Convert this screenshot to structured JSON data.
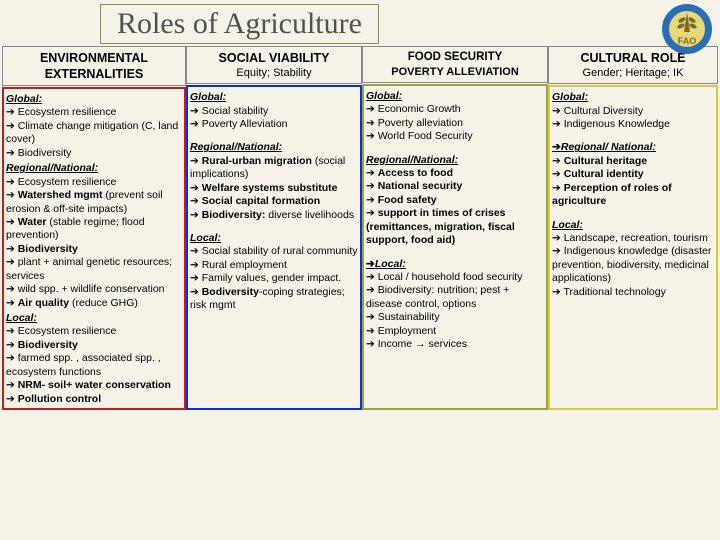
{
  "title": "Roles of Agriculture",
  "logo": {
    "name": "fao-logo",
    "ring_color": "#2a6fb5",
    "inner_color": "#e8d878",
    "text": "FAO"
  },
  "columns": [
    {
      "header": "ENVIRONMENTAL EXTERNALITIES",
      "subheader": "",
      "border_color": "#c21d1d",
      "header_fontsize": 12.5,
      "sections": [
        {
          "label": "Global:",
          "items": [
            {
              "text": "Ecosystem resilience"
            },
            {
              "text": "Climate change mitigation (C, land cover)"
            },
            {
              "text": "Biodiversity"
            }
          ]
        },
        {
          "label": "Regional/National:",
          "items": [
            {
              "text": "Ecosystem resilience"
            },
            {
              "html": "<span class='b'>Watershed mgmt</span> (prevent soil erosion & off-site impacts)"
            },
            {
              "html": "<span class='b'>Water</span> (stable regime; flood prevention)"
            },
            {
              "text": "Biodiversity",
              "bold": true
            },
            {
              "text": "plant + animal genetic resources; services"
            },
            {
              "text": "wild spp. + wildlife conservation"
            },
            {
              "html": "<span class='b'>Air quality</span> (reduce GHG)"
            }
          ]
        },
        {
          "label": "Local:",
          "items": [
            {
              "text": "Ecosystem resilience"
            },
            {
              "text": "Biodiversity",
              "bold": true
            },
            {
              "text": "farmed spp. , associated spp. , ecosystem functions"
            },
            {
              "html": "<span class='b'>NRM- soil+ water conservation</span>"
            },
            {
              "text": "Pollution control",
              "bold": true
            }
          ]
        }
      ]
    },
    {
      "header": "SOCIAL VIABILITY",
      "subheader": "Equity; Stability",
      "border_color": "#0a2fd4",
      "header_fontsize": 12.5,
      "sections": [
        {
          "label": "Global:",
          "items": [
            {
              "text": "Social stability"
            },
            {
              "text": "Poverty Alleviation"
            }
          ]
        },
        {
          "label": "Regional/National:",
          "spaced": true,
          "items": [
            {
              "html": "<span class='b'>Rural-urban migration</span> (social implications)"
            },
            {
              "text": "Welfare systems substitute",
              "bold": true
            },
            {
              "text": "Social capital formation",
              "bold": true
            },
            {
              "html": "<span class='b'>Biodiversity:</span> diverse livelihoods"
            }
          ]
        },
        {
          "label": "Local:",
          "spaced": true,
          "items": [
            {
              "text": "Social stability of rural community"
            },
            {
              "text": "Rural employment"
            },
            {
              "text": "Family values, gender impact."
            },
            {
              "html": "<span class='b'>Bodiversity</span>-coping strategies; risk mgmt"
            }
          ]
        }
      ]
    },
    {
      "header": "FOOD SECURITY",
      "subheader": "POVERTY ALLEVIATION",
      "border_color": "#9aa53b",
      "header_fontsize": 11.5,
      "subheader_bold": true,
      "sections": [
        {
          "label": "Global:",
          "items": [
            {
              "text": "Economic Growth"
            },
            {
              "text": "Poverty alleviation"
            },
            {
              "text": "World Food Security"
            }
          ]
        },
        {
          "label": "Regional/National:",
          "spaced": true,
          "items": [
            {
              "text": "Access to food",
              "bold": true
            },
            {
              "text": "National security",
              "bold": true
            },
            {
              "text": "Food safety",
              "bold": true
            },
            {
              "html": "<span class='b'>support in times of crises (remittances, migration, fiscal support, food aid)</span>"
            }
          ]
        },
        {
          "label": "Local:",
          "bullet_before": true,
          "spaced": true,
          "items": [
            {
              "text": "Local / household food security"
            },
            {
              "text": "Biodiversity: nutrition; pest + disease control, options"
            },
            {
              "text": "Sustainability"
            },
            {
              "text": "Employment"
            },
            {
              "text": "Income → services"
            }
          ]
        }
      ]
    },
    {
      "header": "CULTURAL ROLE",
      "subheader": "Gender; Heritage; IK",
      "border_color": "#d6c94a",
      "header_fontsize": 12.5,
      "sections": [
        {
          "label": "Global:",
          "items": [
            {
              "text": "Cultural Diversity"
            },
            {
              "text": "Indigenous Knowledge"
            }
          ]
        },
        {
          "label": "Regional/ National:",
          "bullet_before": true,
          "spaced": true,
          "items": [
            {
              "text": "Cultural heritage",
              "bold": true
            },
            {
              "text": "Cultural identity",
              "bold": true
            },
            {
              "text": "Perception of roles of agriculture",
              "bold": true
            }
          ]
        },
        {
          "label": "Local:",
          "spaced": true,
          "items": [
            {
              "text": "Landscape, recreation, tourism"
            },
            {
              "text": "Indigenous knowledge (disaster prevention, biodiversity, medicinal applications)"
            },
            {
              "text": "Traditional technology"
            }
          ]
        }
      ]
    }
  ]
}
